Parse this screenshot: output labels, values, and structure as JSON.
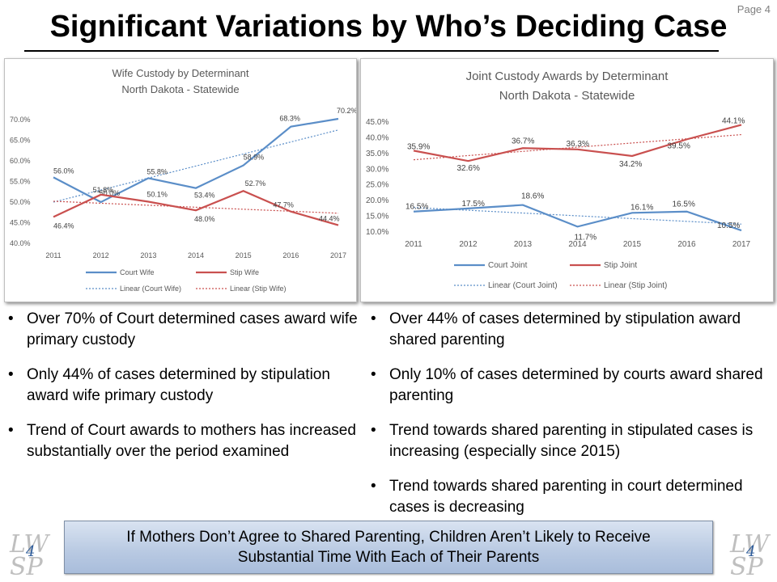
{
  "page_label": "Page 4",
  "title": "Significant Variations by Who’s Deciding Case",
  "colors": {
    "court": "#5b8ec8",
    "stip": "#c9504f",
    "trend_court": "#5b8ec8",
    "trend_stip": "#c9504f"
  },
  "chart_data": [
    {
      "type": "line",
      "title": "Wife Custody by Determinant",
      "subtitle": "North Dakota - Statewide",
      "x": [
        "2011",
        "2012",
        "2013",
        "2014",
        "2015",
        "2016",
        "2017"
      ],
      "ylim": [
        40,
        70
      ],
      "yticks": [
        "40.0%",
        "45.0%",
        "50.0%",
        "55.0%",
        "60.0%",
        "65.0%",
        "70.0%"
      ],
      "series": [
        {
          "name": "Court Wife",
          "values": [
            56.0,
            50.0,
            55.8,
            53.4,
            58.9,
            68.3,
            70.2
          ],
          "labels": [
            "56.0%",
            "50.0%",
            "55.8%",
            "53.4%",
            "58.9%",
            "68.3%",
            "70.2%"
          ]
        },
        {
          "name": "Stip Wife",
          "values": [
            46.4,
            51.8,
            50.1,
            48.0,
            52.7,
            47.7,
            44.4
          ],
          "labels": [
            "46.4%",
            "51.8%",
            "50.1%",
            "48.0%",
            "52.7%",
            "47.7%",
            "44.4%"
          ]
        }
      ],
      "trendlines": [
        {
          "name": "Linear (Court Wife)",
          "from": 50.0,
          "to": 67.5
        },
        {
          "name": "Linear (Stip Wife)",
          "from": 50.2,
          "to": 47.3
        }
      ],
      "legend": "bottom",
      "grid": false
    },
    {
      "type": "line",
      "title": "Joint Custody Awards by Determinant",
      "subtitle": "North Dakota - Statewide",
      "x": [
        "2011",
        "2012",
        "2013",
        "2014",
        "2015",
        "2016",
        "2017"
      ],
      "ylim": [
        10,
        45
      ],
      "yticks": [
        "10.0%",
        "15.0%",
        "20.0%",
        "25.0%",
        "30.0%",
        "35.0%",
        "40.0%",
        "45.0%"
      ],
      "series": [
        {
          "name": "Court Joint",
          "values": [
            16.5,
            17.5,
            18.6,
            11.7,
            16.1,
            16.5,
            10.5
          ],
          "labels": [
            "16.5%",
            "17.5%",
            "18.6%",
            "11.7%",
            "16.1%",
            "16.5%",
            "10.5%"
          ]
        },
        {
          "name": "Stip Joint",
          "values": [
            35.9,
            32.6,
            36.7,
            36.3,
            34.2,
            39.5,
            44.1
          ],
          "labels": [
            "35.9%",
            "32.6%",
            "36.7%",
            "36.3%",
            "34.2%",
            "39.5%",
            "44.1%"
          ]
        }
      ],
      "trendlines": [
        {
          "name": "Linear (Court Joint)",
          "from": 17.8,
          "to": 12.5
        },
        {
          "name": "Linear (Stip Joint)",
          "from": 33.0,
          "to": 41.0
        }
      ],
      "legend": "bottom",
      "grid": false
    }
  ],
  "left_bullets": [
    "Over 70% of Court determined cases award wife primary custody",
    "Only 44% of cases determined by stipulation award wife primary custody",
    "Trend of Court awards to mothers has increased substantially over the period examined"
  ],
  "right_bullets": [
    "Over 44% of cases determined by stipulation award shared parenting",
    "Only 10% of cases determined by courts award shared parenting",
    "Trend towards shared parenting in stipulated cases is increasing (especially since 2015)",
    "Trend towards shared parenting in court determined cases is decreasing"
  ],
  "banner": {
    "line1": "If Mothers Don’t Agree to Shared Parenting, Children Aren’t Likely to Receive",
    "line2": "Substantial Time With Each of Their Parents"
  },
  "logo": {
    "top": "LW",
    "bottom": "SP",
    "number": "4"
  }
}
